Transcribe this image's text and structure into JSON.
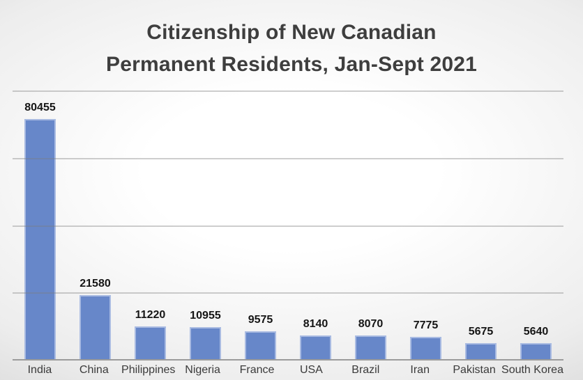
{
  "slide": {
    "title_line1": "Citizenship of New Canadian",
    "title_line2": "Permanent Residents, Jan-Sept 2021"
  },
  "chart_data": {
    "type": "bar",
    "title": "Citizenship of New Canadian Permanent Residents, Jan-Sept 2021",
    "categories": [
      "India",
      "China",
      "Philippines",
      "Nigeria",
      "France",
      "USA",
      "Brazil",
      "Iran",
      "Pakistan",
      "South Korea"
    ],
    "values": [
      80455,
      21580,
      11220,
      10955,
      9575,
      8140,
      8070,
      7775,
      5675,
      5640
    ],
    "xlabel": "",
    "ylabel": "",
    "ylim": [
      0,
      90000
    ],
    "gridline_interval": 22500,
    "gridline_count": 4,
    "grid": true,
    "y_axis_tick_labels_visible": false,
    "data_labels_visible": true,
    "legend_position": "none"
  },
  "colors": {
    "bar_fill": "#6787c9",
    "bar_border": "#a9bbe2",
    "gridline": "rgba(125,125,125,0.38)",
    "axis_line": "#9b9b9b",
    "title_text": "#3e3e3e",
    "label_text": "#3a3a3a",
    "value_text": "#151515",
    "bg_center": "#ffffff",
    "bg_mid": "#ededed",
    "bg_edge": "#c6c6c6"
  }
}
